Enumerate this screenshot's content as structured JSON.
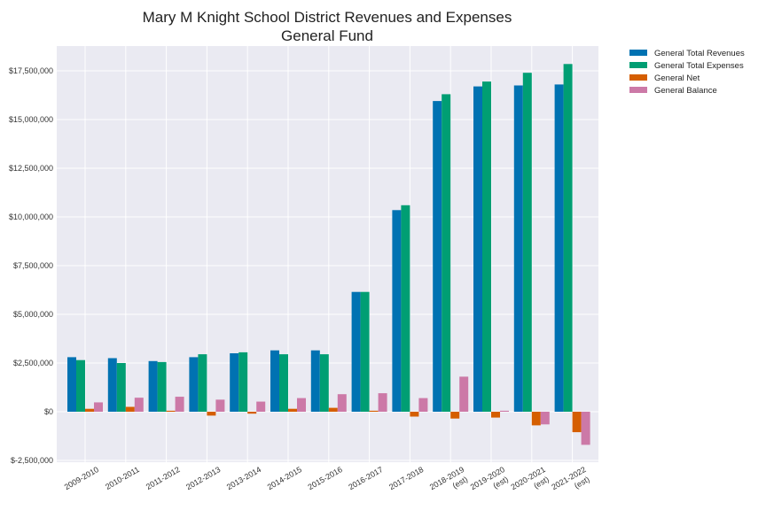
{
  "chart_data": {
    "type": "bar",
    "title": "Mary M Knight School District Revenues and Expenses",
    "subtitle": "General Fund",
    "xlabel": "",
    "ylabel": "",
    "ylim": [
      -2500000,
      19000000
    ],
    "grid": true,
    "legend_position": "outside-top-right",
    "categories": [
      [
        "2009-2010"
      ],
      [
        "2010-2011"
      ],
      [
        "2011-2012"
      ],
      [
        "2012-2013"
      ],
      [
        "2013-2014"
      ],
      [
        "2014-2015"
      ],
      [
        "2015-2016"
      ],
      [
        "2016-2017"
      ],
      [
        "2017-2018"
      ],
      [
        "2018-2019",
        "(est)"
      ],
      [
        "2019-2020",
        "(est)"
      ],
      [
        "2020-2021",
        "(est)"
      ],
      [
        "2021-2022",
        "(est)"
      ]
    ],
    "y_ticks": [
      {
        "value": 17500000,
        "label": "$17,500,000"
      },
      {
        "value": 15000000,
        "label": "$15,000,000"
      },
      {
        "value": 12500000,
        "label": "$12,500,000"
      },
      {
        "value": 10000000,
        "label": "$10,000,000"
      },
      {
        "value": 7500000,
        "label": "$7,500,000"
      },
      {
        "value": 5000000,
        "label": "$5,000,000"
      },
      {
        "value": 2500000,
        "label": "$2,500,000"
      },
      {
        "value": 0,
        "label": "$0"
      },
      {
        "value": -2500000,
        "label": "$-2,500,000"
      }
    ],
    "series": [
      {
        "name": "General Total Revenues",
        "color": "#0072b2",
        "values": [
          2800000,
          2750000,
          2600000,
          2800000,
          3000000,
          3150000,
          3150000,
          6150000,
          10350000,
          15950000,
          16700000,
          16750000,
          16800000
        ]
      },
      {
        "name": "General Total Expenses",
        "color": "#009e73",
        "values": [
          2650000,
          2500000,
          2550000,
          2950000,
          3050000,
          2950000,
          2950000,
          6150000,
          10600000,
          16300000,
          16950000,
          17400000,
          17850000
        ]
      },
      {
        "name": "General Net",
        "color": "#d55e00",
        "values": [
          150000,
          250000,
          50000,
          -200000,
          -100000,
          150000,
          200000,
          50000,
          -250000,
          -350000,
          -300000,
          -700000,
          -1050000
        ]
      },
      {
        "name": "General Balance",
        "color": "#cc79a7",
        "values": [
          480000,
          720000,
          770000,
          620000,
          520000,
          700000,
          900000,
          950000,
          700000,
          1800000,
          50000,
          -650000,
          -1700000
        ]
      }
    ]
  }
}
